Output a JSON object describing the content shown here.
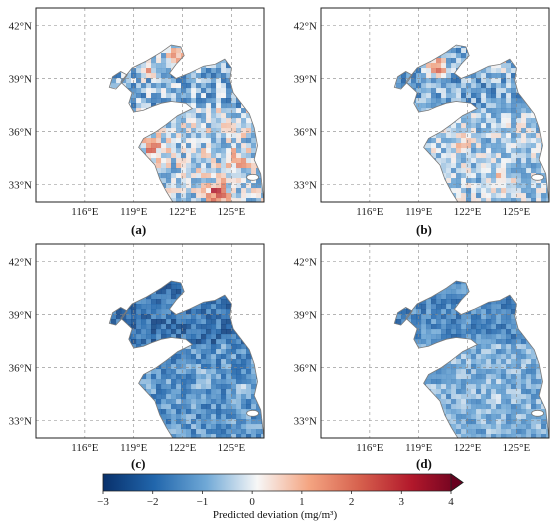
{
  "panels": [
    {
      "label": "(a)",
      "scenario": "a"
    },
    {
      "label": "(b)",
      "scenario": "b"
    },
    {
      "label": "(c)",
      "scenario": "c"
    },
    {
      "label": "(d)",
      "scenario": "d"
    }
  ],
  "lat_ticks": [
    "42°N",
    "39°N",
    "36°N",
    "33°N"
  ],
  "lon_ticks": [
    "116°E",
    "119°E",
    "122°E",
    "125°E"
  ],
  "colorbar": {
    "label": "Predicted deviation (mg/m³)",
    "ticks": [
      "−3",
      "−2",
      "−1",
      "0",
      "1",
      "2",
      "3",
      "4"
    ],
    "min": -3,
    "max": 4,
    "colors": [
      "#08306b",
      "#2166ac",
      "#6fa8d6",
      "#f7f7f7",
      "#f4a582",
      "#d6604d",
      "#b2182b",
      "#67001f"
    ]
  }
}
